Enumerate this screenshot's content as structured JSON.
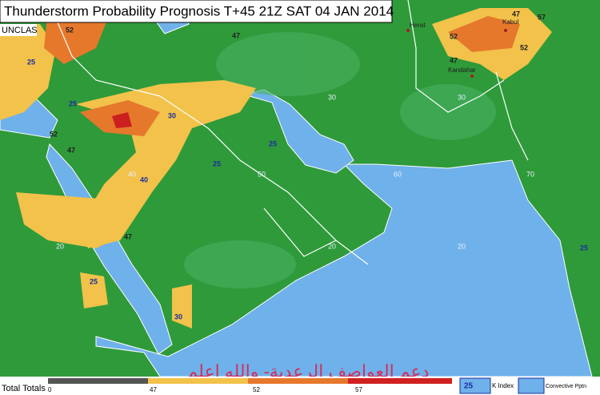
{
  "header": {
    "title": "Thunderstorm Probability Prognosis T+45 21Z SAT 04 JAN 2014",
    "classification": "UNCLAS"
  },
  "map": {
    "cities": [
      "Herat",
      "Kabul",
      "Kandahar"
    ],
    "grid_labels": [
      "30",
      "30",
      "20",
      "20",
      "20",
      "40",
      "50",
      "60",
      "70"
    ],
    "contour_labels": [
      "47",
      "52",
      "25",
      "25",
      "47",
      "52",
      "30",
      "40",
      "47",
      "25",
      "30",
      "25",
      "25",
      "47",
      "52",
      "57",
      "47",
      "52",
      "25"
    ]
  },
  "legend": {
    "title": "Total Totals",
    "scale_ticks": [
      "0",
      "47",
      "52",
      "57"
    ],
    "k_index": {
      "sample": "25",
      "label": "K Index"
    },
    "convective": {
      "label": "Convective Pptn"
    }
  },
  "watermark": "دعم العواصف الرعدية- والله اعلم"
}
